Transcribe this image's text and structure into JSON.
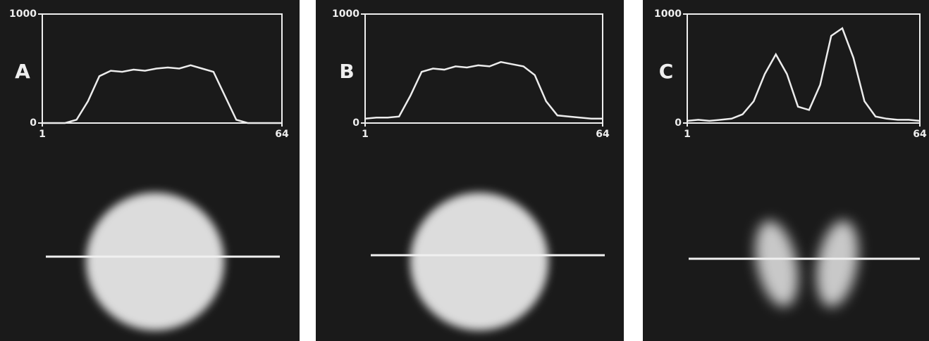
{
  "chart_data": [
    {
      "type": "line",
      "title": "A",
      "x": [
        1,
        4,
        7,
        10,
        13,
        16,
        19,
        22,
        25,
        28,
        31,
        34,
        37,
        40,
        43,
        46,
        49,
        52,
        55,
        58,
        61,
        64
      ],
      "series": [
        {
          "color": "#ececec",
          "values": [
            0,
            0,
            0,
            30,
            200,
            430,
            480,
            470,
            490,
            480,
            500,
            510,
            500,
            530,
            500,
            470,
            250,
            30,
            0,
            0,
            0,
            0
          ]
        }
      ],
      "xlim": [
        1,
        64
      ],
      "ylim": [
        0,
        1000
      ],
      "xticks": [
        1,
        64
      ],
      "yticks": [
        0,
        1000
      ]
    },
    {
      "type": "line",
      "title": "B",
      "x": [
        1,
        4,
        7,
        10,
        13,
        16,
        19,
        22,
        25,
        28,
        31,
        34,
        37,
        40,
        43,
        46,
        49,
        52,
        55,
        58,
        61,
        64
      ],
      "series": [
        {
          "color": "#ececec",
          "values": [
            40,
            50,
            50,
            60,
            250,
            470,
            500,
            490,
            520,
            510,
            530,
            520,
            560,
            540,
            520,
            440,
            200,
            70,
            60,
            50,
            40,
            40
          ]
        }
      ],
      "xlim": [
        1,
        64
      ],
      "ylim": [
        0,
        1000
      ],
      "xticks": [
        1,
        64
      ],
      "yticks": [
        0,
        1000
      ]
    },
    {
      "type": "line",
      "title": "C",
      "x": [
        1,
        4,
        7,
        10,
        13,
        16,
        19,
        22,
        25,
        28,
        31,
        34,
        37,
        40,
        43,
        46,
        49,
        52,
        55,
        58,
        61,
        64
      ],
      "series": [
        {
          "color": "#ececec",
          "values": [
            20,
            30,
            20,
            30,
            40,
            80,
            200,
            450,
            630,
            450,
            150,
            120,
            350,
            800,
            870,
            600,
            200,
            60,
            40,
            30,
            30,
            20
          ]
        }
      ],
      "xlim": [
        1,
        64
      ],
      "ylim": [
        0,
        1000
      ],
      "xticks": [
        1,
        64
      ],
      "yticks": [
        0,
        1000
      ]
    }
  ]
}
